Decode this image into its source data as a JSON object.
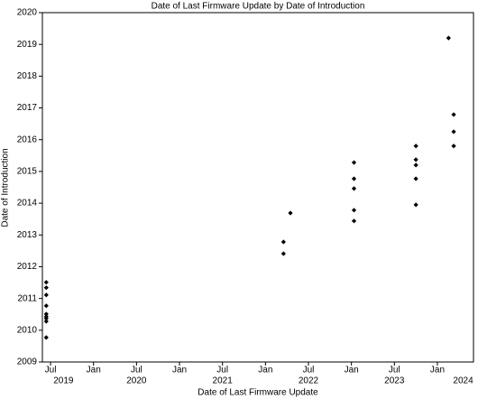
{
  "chart_data": {
    "type": "scatter",
    "title": "Date of Last Firmware Update by Date of Introduction",
    "x_label": "Date of Last Firmware Update",
    "y_label": "Date of Introduction",
    "color": "#000000",
    "x": [
      2019.45,
      2019.45,
      2019.45,
      2019.45,
      2019.45,
      2019.45,
      2019.45,
      2019.45,
      2019.45,
      2022.21,
      2022.21,
      2022.29,
      2023.03,
      2023.03,
      2023.03,
      2023.03,
      2023.03,
      2023.75,
      2023.75,
      2023.75,
      2023.75,
      2023.75,
      2024.13,
      2024.19,
      2024.19,
      2024.19
    ],
    "values": [
      2011.51,
      2011.34,
      2011.11,
      2010.77,
      2010.51,
      2010.43,
      2010.37,
      2010.28,
      2009.77,
      2012.78,
      2012.41,
      2013.69,
      2015.28,
      2014.77,
      2014.46,
      2013.78,
      2013.44,
      2015.8,
      2015.37,
      2015.2,
      2014.77,
      2013.95,
      2019.2,
      2016.79,
      2016.25,
      2015.8
    ],
    "xlim": [
      2019.405,
      2024.42
    ],
    "xticks": [
      {
        "value": 2019.5,
        "label": "Jul"
      },
      {
        "value": 2020,
        "label": "Jan"
      },
      {
        "value": 2020.5,
        "label": "Jul"
      },
      {
        "value": 2021,
        "label": "Jan"
      },
      {
        "value": 2021.5,
        "label": "Jul"
      },
      {
        "value": 2022,
        "label": "Jan"
      },
      {
        "value": 2022.5,
        "label": "Jul"
      },
      {
        "value": 2023,
        "label": "Jan"
      },
      {
        "value": 2023.5,
        "label": "Jul"
      },
      {
        "value": 2024,
        "label": "Jan"
      }
    ],
    "x_year_labels": [
      {
        "value": 2019.65,
        "label": "2019"
      },
      {
        "value": 2020.5,
        "label": "2020"
      },
      {
        "value": 2021.5,
        "label": "2021"
      },
      {
        "value": 2022.5,
        "label": "2022"
      },
      {
        "value": 2023.5,
        "label": "2023"
      },
      {
        "value": 2024.3,
        "label": "2024"
      }
    ],
    "ylim": [
      2009,
      2020
    ],
    "yticks": [
      2009,
      2010,
      2011,
      2012,
      2013,
      2014,
      2015,
      2016,
      2017,
      2018,
      2019,
      2020
    ]
  }
}
